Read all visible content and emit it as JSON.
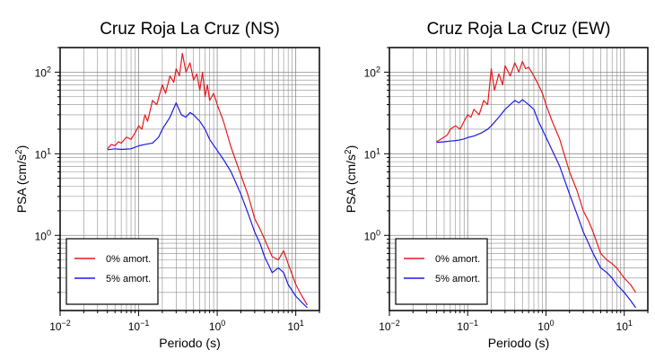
{
  "chart_data": [
    {
      "type": "line",
      "title": "Cruz Roja La Cruz (NS)",
      "xlabel": "Periodo (s)",
      "ylabel": "PSA (cm/s²)",
      "xscale": "log",
      "yscale": "log",
      "xlim": [
        0.01,
        20
      ],
      "ylim": [
        0.12,
        200
      ],
      "xticks": [
        {
          "base": "10",
          "exp": "−2"
        },
        {
          "base": "10",
          "exp": "−1"
        },
        {
          "base": "10",
          "exp": "0"
        },
        {
          "base": "10",
          "exp": "1"
        }
      ],
      "yticks": [
        {
          "base": "10",
          "exp": "0"
        },
        {
          "base": "10",
          "exp": "1"
        },
        {
          "base": "10",
          "exp": "2"
        }
      ],
      "grid": true,
      "legend_position": "bottom-left",
      "series": [
        {
          "name": "0% amort.",
          "color": "#e8191b",
          "x": [
            0.04,
            0.045,
            0.05,
            0.055,
            0.06,
            0.07,
            0.08,
            0.09,
            0.1,
            0.11,
            0.12,
            0.13,
            0.15,
            0.17,
            0.2,
            0.22,
            0.25,
            0.28,
            0.3,
            0.33,
            0.36,
            0.4,
            0.45,
            0.5,
            0.55,
            0.6,
            0.65,
            0.7,
            0.75,
            0.8,
            0.9,
            1.0,
            1.2,
            1.5,
            2.0,
            2.5,
            3.0,
            3.5,
            4.0,
            5.0,
            6.0,
            7.0,
            8.0,
            10.0,
            12.0,
            14.0
          ],
          "y": [
            11.5,
            13.0,
            12.5,
            14.0,
            13.5,
            16.0,
            15.0,
            18.0,
            22.0,
            20.0,
            30.0,
            25.0,
            45.0,
            40.0,
            70.0,
            55.0,
            90.0,
            75.0,
            110.0,
            90.0,
            170.0,
            100.0,
            130.0,
            80.0,
            95.0,
            60.0,
            100.0,
            50.0,
            70.0,
            45.0,
            55.0,
            40.0,
            25.0,
            12.0,
            5.5,
            3.0,
            1.6,
            1.2,
            0.9,
            0.55,
            0.5,
            0.65,
            0.45,
            0.25,
            0.18,
            0.14
          ]
        },
        {
          "name": "5% amort.",
          "color": "#1a1ae6",
          "x": [
            0.04,
            0.05,
            0.06,
            0.07,
            0.08,
            0.09,
            0.1,
            0.12,
            0.15,
            0.18,
            0.2,
            0.25,
            0.3,
            0.35,
            0.4,
            0.45,
            0.5,
            0.6,
            0.7,
            0.8,
            1.0,
            1.2,
            1.5,
            2.0,
            2.5,
            3.0,
            3.5,
            4.0,
            5.0,
            6.0,
            7.0,
            8.0,
            10.0,
            12.0,
            14.0
          ],
          "y": [
            11.2,
            11.5,
            11.3,
            11.4,
            11.5,
            12.0,
            12.5,
            13.0,
            13.5,
            16.0,
            20.0,
            28.0,
            42.0,
            30.0,
            28.0,
            32.0,
            30.0,
            25.0,
            20.0,
            15.0,
            11.0,
            8.5,
            6.0,
            3.2,
            1.8,
            1.1,
            0.8,
            0.55,
            0.35,
            0.4,
            0.35,
            0.25,
            0.18,
            0.15,
            0.13
          ]
        }
      ]
    },
    {
      "type": "line",
      "title": "Cruz Roja La Cruz (EW)",
      "xlabel": "Periodo (s)",
      "ylabel": "PSA (cm/s²)",
      "xscale": "log",
      "yscale": "log",
      "xlim": [
        0.01,
        20
      ],
      "ylim": [
        0.12,
        200
      ],
      "xticks": [
        {
          "base": "10",
          "exp": "−2"
        },
        {
          "base": "10",
          "exp": "−1"
        },
        {
          "base": "10",
          "exp": "0"
        },
        {
          "base": "10",
          "exp": "1"
        }
      ],
      "yticks": [
        {
          "base": "10",
          "exp": "0"
        },
        {
          "base": "10",
          "exp": "1"
        },
        {
          "base": "10",
          "exp": "2"
        }
      ],
      "grid": true,
      "legend_position": "bottom-left",
      "series": [
        {
          "name": "0% amort.",
          "color": "#e8191b",
          "x": [
            0.04,
            0.045,
            0.05,
            0.055,
            0.06,
            0.07,
            0.08,
            0.09,
            0.1,
            0.11,
            0.12,
            0.14,
            0.16,
            0.18,
            0.2,
            0.22,
            0.25,
            0.28,
            0.3,
            0.35,
            0.4,
            0.45,
            0.5,
            0.55,
            0.6,
            0.7,
            0.8,
            0.9,
            1.0,
            1.2,
            1.5,
            2.0,
            2.5,
            3.0,
            3.5,
            4.0,
            5.0,
            6.0,
            7.0,
            8.0,
            10.0,
            12.0,
            14.0
          ],
          "y": [
            14.0,
            15.0,
            16.0,
            17.0,
            20.0,
            22.0,
            20.0,
            25.0,
            30.0,
            28.0,
            35.0,
            30.0,
            45.0,
            40.0,
            110.0,
            60.0,
            95.0,
            70.0,
            120.0,
            90.0,
            130.0,
            100.0,
            135.0,
            110.0,
            115.0,
            90.0,
            70.0,
            55.0,
            40.0,
            25.0,
            15.0,
            6.0,
            3.5,
            2.0,
            1.5,
            1.1,
            0.6,
            0.5,
            0.45,
            0.4,
            0.3,
            0.25,
            0.2
          ]
        },
        {
          "name": "5% amort.",
          "color": "#1a1ae6",
          "x": [
            0.04,
            0.05,
            0.06,
            0.07,
            0.08,
            0.09,
            0.1,
            0.12,
            0.15,
            0.18,
            0.2,
            0.25,
            0.3,
            0.35,
            0.4,
            0.45,
            0.5,
            0.6,
            0.7,
            0.8,
            1.0,
            1.2,
            1.5,
            2.0,
            2.5,
            3.0,
            3.5,
            4.0,
            5.0,
            6.0,
            7.0,
            8.0,
            10.0,
            12.0,
            14.0
          ],
          "y": [
            13.8,
            14.0,
            14.3,
            14.5,
            14.8,
            15.2,
            15.8,
            16.5,
            18.0,
            20.0,
            22.0,
            28.0,
            35.0,
            40.0,
            45.0,
            42.0,
            46.0,
            40.0,
            35.0,
            25.0,
            16.0,
            11.0,
            7.0,
            3.2,
            1.8,
            1.1,
            0.8,
            0.6,
            0.4,
            0.35,
            0.3,
            0.25,
            0.2,
            0.16,
            0.13
          ]
        }
      ]
    }
  ]
}
